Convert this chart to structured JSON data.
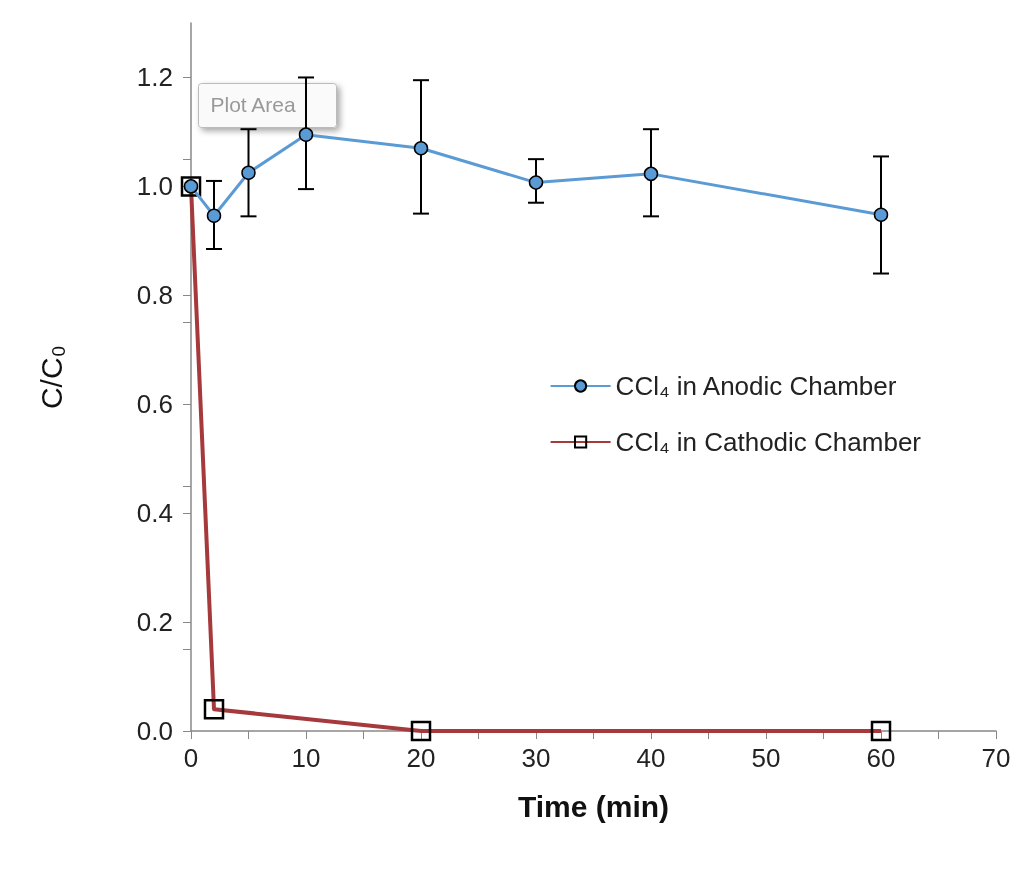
{
  "chart_data": {
    "type": "line",
    "xlabel": "Time (min)",
    "ylabel": "C/C₀",
    "xlim": [
      0,
      70
    ],
    "xticks": [
      0,
      10,
      20,
      30,
      40,
      50,
      60,
      70
    ],
    "ylim": [
      0,
      1.3
    ],
    "yticks": [
      {
        "value": 0,
        "label": "0.0"
      },
      {
        "value": 0.2,
        "label": "0.2"
      },
      {
        "value": 0.4,
        "label": "0.4"
      },
      {
        "value": 0.6,
        "label": "0.6"
      },
      {
        "value": 0.8,
        "label": "0.8"
      },
      {
        "value": 1,
        "label": "1.0"
      },
      {
        "value": 1.2,
        "label": "1.2"
      }
    ],
    "grid": false,
    "legend": "right",
    "annotations": [
      "Plot Area"
    ],
    "series": [
      {
        "name": "CCl₄ in Anodic Chamber",
        "color": "#5b9bd5",
        "marker": "circle",
        "x": [
          0,
          2,
          5,
          10,
          20,
          30,
          40,
          60
        ],
        "values": [
          1.0,
          0.946,
          1.025,
          1.095,
          1.07,
          1.007,
          1.023,
          0.948
        ],
        "errors": [
          null,
          [
            0.885,
            1.01
          ],
          [
            0.945,
            1.105
          ],
          [
            0.995,
            1.2
          ],
          [
            0.95,
            1.195
          ],
          [
            0.97,
            1.05
          ],
          [
            0.945,
            1.105
          ],
          [
            0.84,
            1.055
          ]
        ]
      },
      {
        "name": "CCl₄ in Cathodic Chamber",
        "color": "#a5393b",
        "marker": "square",
        "x": [
          0,
          2,
          20,
          60
        ],
        "values": [
          1.0,
          0.04,
          0,
          0
        ]
      }
    ]
  }
}
